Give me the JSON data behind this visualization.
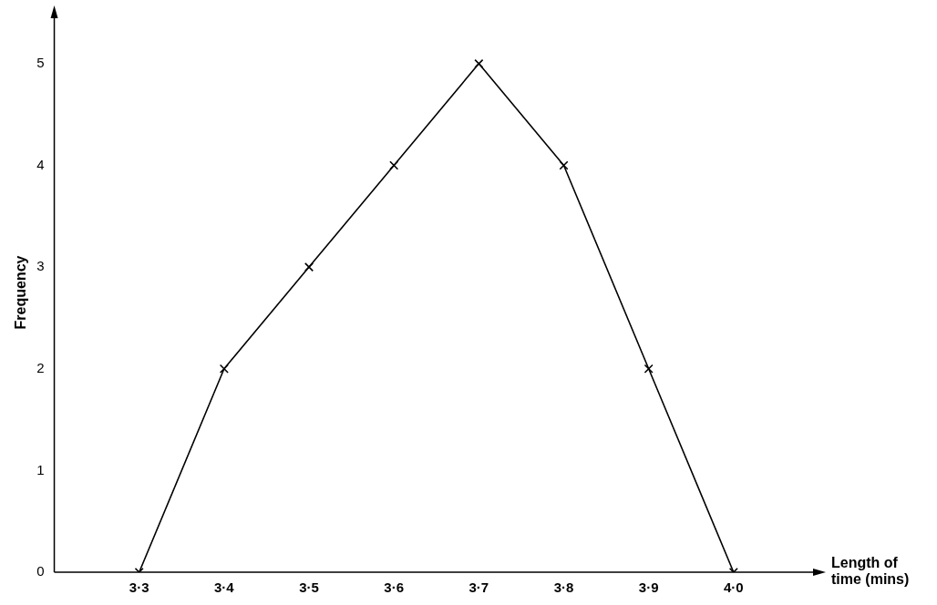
{
  "chart_data": {
    "type": "line",
    "xlabel": "Length of time (mins)",
    "ylabel": "Frequency",
    "categories": [
      "3·3",
      "3·4",
      "3·5",
      "3·6",
      "3·7",
      "3·8",
      "3·9",
      "4·0"
    ],
    "series": [
      {
        "color": "#000000",
        "values": [
          0,
          2,
          3,
          4,
          5,
          4,
          2,
          0
        ]
      }
    ],
    "ylim": [
      0,
      5.5
    ],
    "yticks": [
      0,
      1,
      2,
      3,
      4,
      5
    ],
    "grid": false,
    "legend": false,
    "marker": "cross",
    "line_style": "solid"
  }
}
